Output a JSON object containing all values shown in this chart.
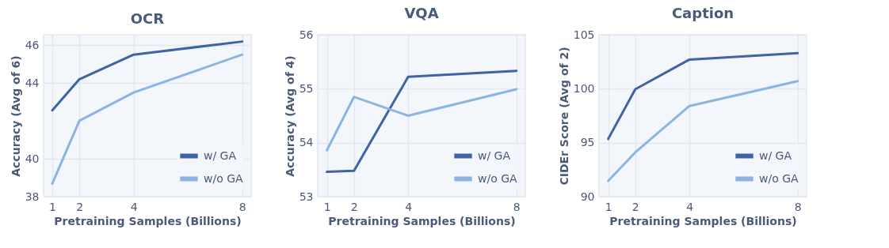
{
  "chart_data": [
    {
      "type": "line",
      "title": "OCR",
      "xlabel": "Pretraining Samples (Billions)",
      "ylabel": "Accuracy (Avg of 6)",
      "x": [
        1,
        2,
        4,
        8
      ],
      "xlim": [
        0.68,
        8.33
      ],
      "xticks": [
        1,
        2,
        4,
        8
      ],
      "ylim": [
        38,
        46.55
      ],
      "yticks": [
        38,
        40,
        44,
        46
      ],
      "grid": true,
      "legend": "bottom right",
      "marker": "none",
      "line_style": "solid",
      "series": [
        {
          "name": "w/   GA",
          "color": "#4062a6",
          "values": [
            42.56,
            44.2,
            45.5,
            46.19
          ]
        },
        {
          "name": "w/o GA",
          "color": "#8db3e2",
          "values": [
            38.69,
            42.01,
            43.5,
            45.5
          ]
        }
      ]
    },
    {
      "type": "line",
      "title": "VQA",
      "xlabel": "Pretraining Samples (Billions)",
      "ylabel": "Accuracy (Avg of 4)",
      "x": [
        1,
        2,
        4,
        8
      ],
      "xlim": [
        0.66,
        8.33
      ],
      "xticks": [
        1,
        2,
        4,
        8
      ],
      "ylim": [
        53,
        56
      ],
      "yticks": [
        53,
        54,
        55,
        56
      ],
      "grid": true,
      "legend": "bottom right",
      "marker": "none",
      "line_style": "solid",
      "series": [
        {
          "name": "w/   GA",
          "color": "#4062a6",
          "values": [
            53.46,
            53.48,
            55.22,
            55.33
          ]
        },
        {
          "name": "w/o GA",
          "color": "#8db3e2",
          "values": [
            53.86,
            54.85,
            54.5,
            54.99
          ]
        }
      ]
    },
    {
      "type": "line",
      "title": "Caption",
      "xlabel": "Pretraining Samples (Billions)",
      "ylabel": "CIDEr Score (Avg of 2)",
      "x": [
        1,
        2,
        4,
        8
      ],
      "xlim": [
        0.66,
        8.33
      ],
      "xticks": [
        1,
        2,
        4,
        8
      ],
      "ylim": [
        90,
        105
      ],
      "yticks": [
        90,
        95,
        100,
        105
      ],
      "grid": true,
      "legend": "bottom right",
      "marker": "none",
      "line_style": "solid",
      "series": [
        {
          "name": "w/   GA",
          "color": "#4062a6",
          "values": [
            95.35,
            99.95,
            102.7,
            103.3
          ]
        },
        {
          "name": "w/o GA",
          "color": "#8db3e2",
          "values": [
            91.47,
            94.1,
            98.4,
            100.7
          ]
        }
      ]
    }
  ]
}
